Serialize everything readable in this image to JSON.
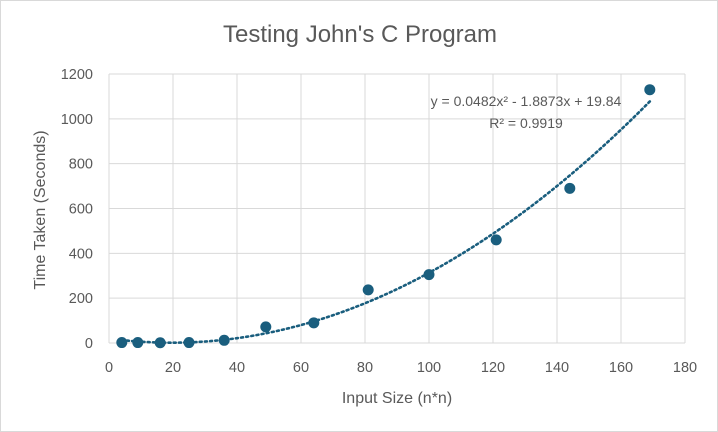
{
  "chart_data": {
    "type": "scatter",
    "title": "Testing John's C Program",
    "xlabel": "Input Size (n*n)",
    "ylabel": "Time Taken (Seconds)",
    "xlim": [
      0,
      180
    ],
    "ylim": [
      0,
      1200
    ],
    "x_ticks": [
      0,
      20,
      40,
      60,
      80,
      100,
      120,
      140,
      160,
      180
    ],
    "y_ticks": [
      0,
      200,
      400,
      600,
      800,
      1000,
      1200
    ],
    "grid": true,
    "legend": "none",
    "colors": {
      "marker": "#1a5e7e",
      "trendline": "#1a5e7e"
    },
    "series": [
      {
        "x": [
          4,
          9,
          16,
          25,
          36,
          49,
          64,
          81,
          100,
          121,
          144,
          169
        ],
        "y": [
          2,
          2,
          1,
          2,
          12,
          72,
          90,
          237,
          305,
          460,
          690,
          1130
        ]
      }
    ],
    "trendline": {
      "type": "polynomial",
      "coefficients": [
        0.0482,
        -1.8873,
        19.84
      ],
      "equation_text": "y = 0.0482x² - 1.8873x + 19.84",
      "r2_text": "R² = 0.9919"
    }
  }
}
